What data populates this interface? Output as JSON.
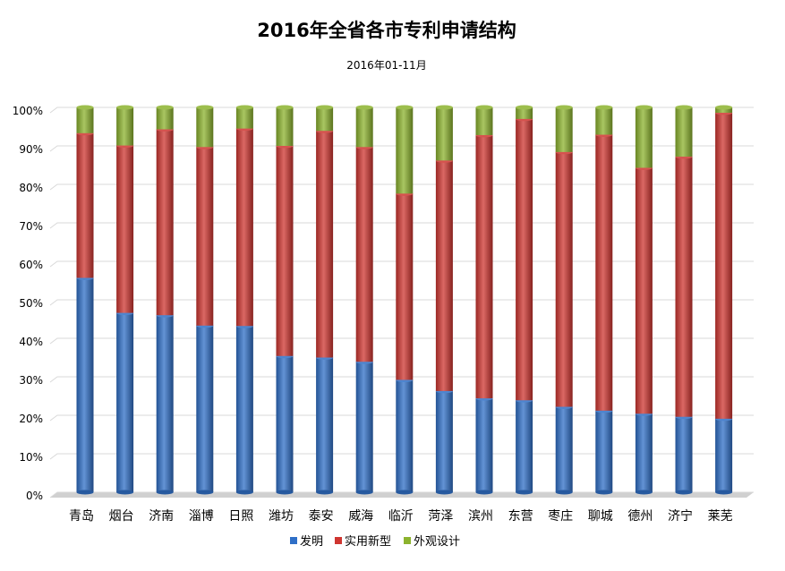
{
  "chart_data": {
    "type": "bar",
    "stacked": true,
    "percent_stacked": true,
    "title": "2016年全省各市专利申请结构",
    "subtitle": "2016年01-11月",
    "ylim": [
      0,
      100
    ],
    "ytick_labels": [
      "0%",
      "10%",
      "20%",
      "30%",
      "40%",
      "50%",
      "60%",
      "70%",
      "80%",
      "90%",
      "100%"
    ],
    "grid": true,
    "legend_position": "bottom",
    "categories": [
      "青岛",
      "烟台",
      "济南",
      "淄博",
      "日照",
      "潍坊",
      "泰安",
      "威海",
      "临沂",
      "菏泽",
      "滨州",
      "东营",
      "枣庄",
      "聊城",
      "德州",
      "济宁",
      "莱芜"
    ],
    "series": [
      {
        "name": "发明",
        "color": "#2f6fc7",
        "values": [
          55.7,
          46.6,
          46.0,
          43.3,
          43.2,
          35.4,
          35.0,
          33.9,
          29.2,
          26.3,
          24.4,
          23.9,
          22.2,
          21.2,
          20.4,
          19.6,
          19.1
        ]
      },
      {
        "name": "实用新型",
        "color": "#cf3530",
        "values": [
          37.6,
          43.5,
          48.3,
          46.4,
          51.3,
          54.6,
          58.9,
          55.8,
          48.4,
          59.9,
          68.4,
          73.1,
          66.2,
          71.7,
          63.9,
          67.6,
          79.5
        ]
      },
      {
        "name": "外观设计",
        "color": "#8cb32e",
        "values": [
          6.7,
          9.9,
          5.7,
          10.3,
          5.5,
          10.0,
          6.1,
          10.3,
          22.4,
          13.8,
          7.2,
          3.0,
          11.6,
          7.1,
          15.7,
          12.8,
          1.4
        ]
      }
    ]
  }
}
